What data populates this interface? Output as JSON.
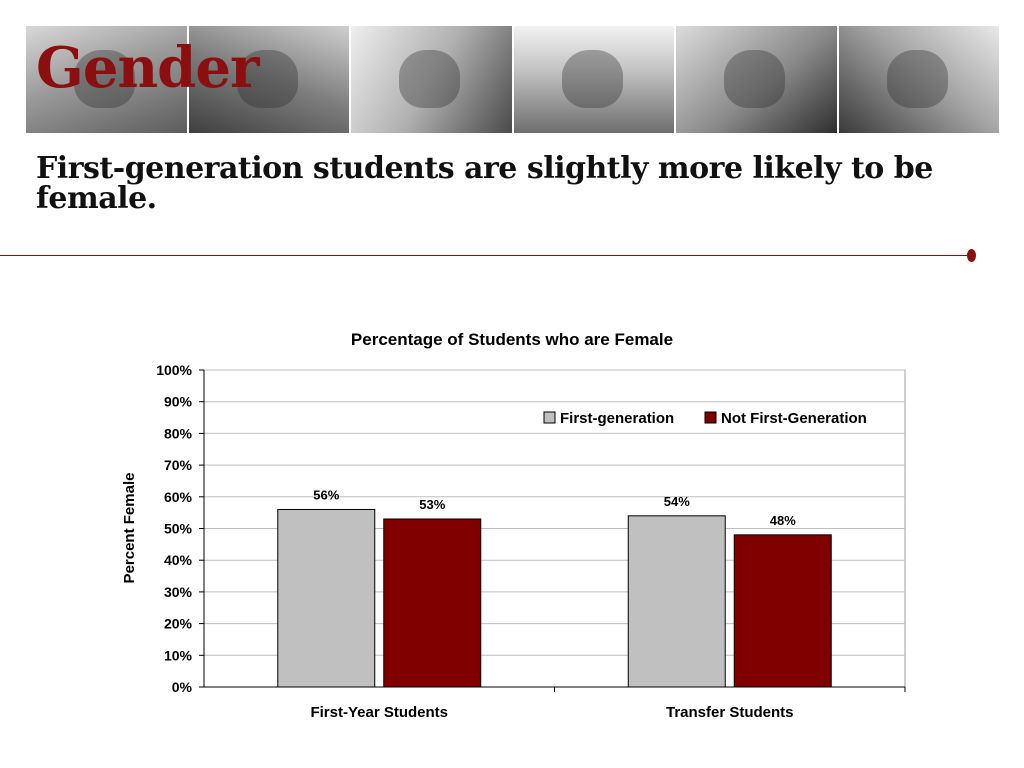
{
  "header": {
    "title": "Gender",
    "subtitle": "First-generation students are slightly more likely to be female."
  },
  "banner": {
    "photos": [
      "students-photo",
      "student-lying-photo",
      "students-studying-photo",
      "student-laptop-photo",
      "graduates-photo",
      "graduation-cap-photo"
    ]
  },
  "colors": {
    "accent": "#8B0F0F",
    "first_generation": "#C0C0C0",
    "not_first_generation": "#800000",
    "gridline": "#BDBDBD"
  },
  "chart_data": {
    "type": "bar",
    "title": "Percentage of Students who are Female",
    "ylabel": "Percent Female",
    "xlabel": "",
    "categories": [
      "First-Year Students",
      "Transfer Students"
    ],
    "series": [
      {
        "name": "First-generation",
        "values": [
          56,
          54
        ],
        "labels": [
          "56%",
          "54%"
        ],
        "color": "#C0C0C0"
      },
      {
        "name": "Not First-Generation",
        "values": [
          53,
          48
        ],
        "labels": [
          "53%",
          "48%"
        ],
        "color": "#800000"
      }
    ],
    "ylim": [
      0,
      100
    ],
    "yticks": [
      "0%",
      "10%",
      "20%",
      "30%",
      "40%",
      "50%",
      "60%",
      "70%",
      "80%",
      "90%",
      "100%"
    ],
    "grid": true,
    "legend_position": "top-right"
  }
}
